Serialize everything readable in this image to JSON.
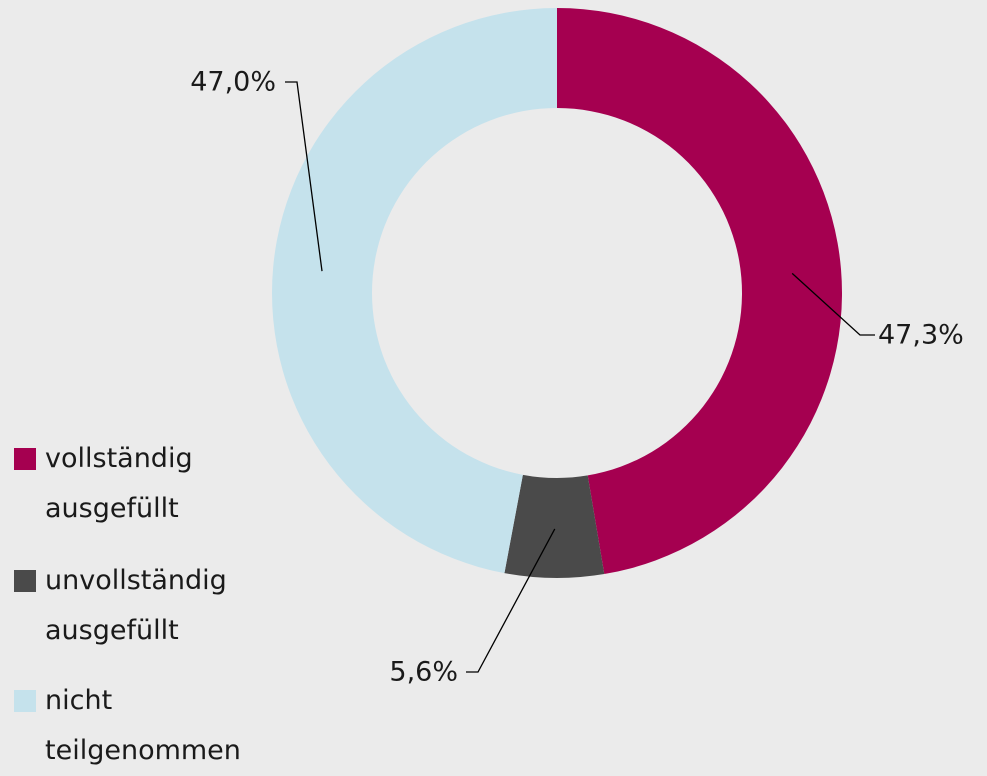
{
  "chart_data": {
    "type": "donut",
    "categories": [
      "vollständig ausgefüllt",
      "unvollständig ausgefüllt",
      "nicht teilgenommen"
    ],
    "values": [
      47.3,
      5.6,
      47.0
    ],
    "value_labels": [
      "47,3%",
      "5,6%",
      "47,0%"
    ],
    "colors": [
      "#a50050",
      "#4a4a4a",
      "#c5e2ec"
    ],
    "legend": "left"
  }
}
